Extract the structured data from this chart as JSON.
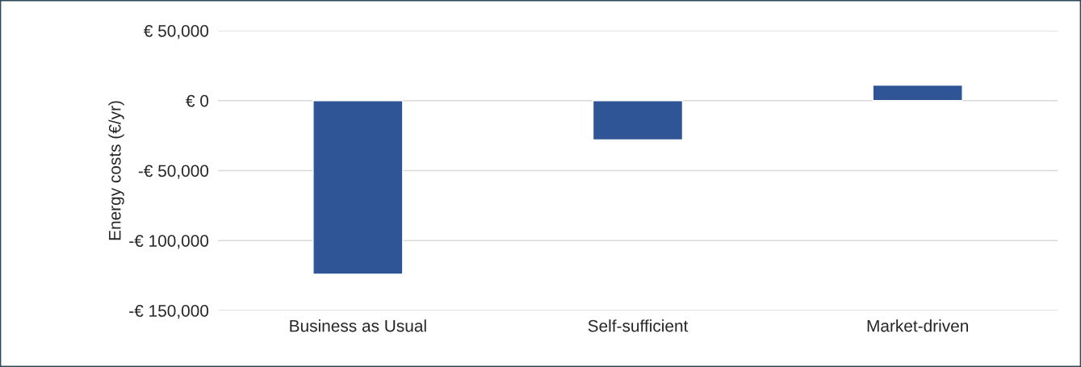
{
  "chart_data": {
    "type": "bar",
    "categories": [
      "Business as Usual",
      "Self-sufficient",
      "Market-driven"
    ],
    "values": [
      -124000,
      -28000,
      11000
    ],
    "color": "#2f5597",
    "ylabel": "Energy costs (€/yr)",
    "ylim": [
      -150000,
      50000
    ],
    "yticks": [
      {
        "value": -150000,
        "label": "-€ 150,000"
      },
      {
        "value": -100000,
        "label": "-€ 100,000"
      },
      {
        "value": -50000,
        "label": "-€ 50,000"
      },
      {
        "value": 0,
        "label": "€ 0"
      },
      {
        "value": 50000,
        "label": "€ 50,000"
      }
    ],
    "grid": "y"
  }
}
